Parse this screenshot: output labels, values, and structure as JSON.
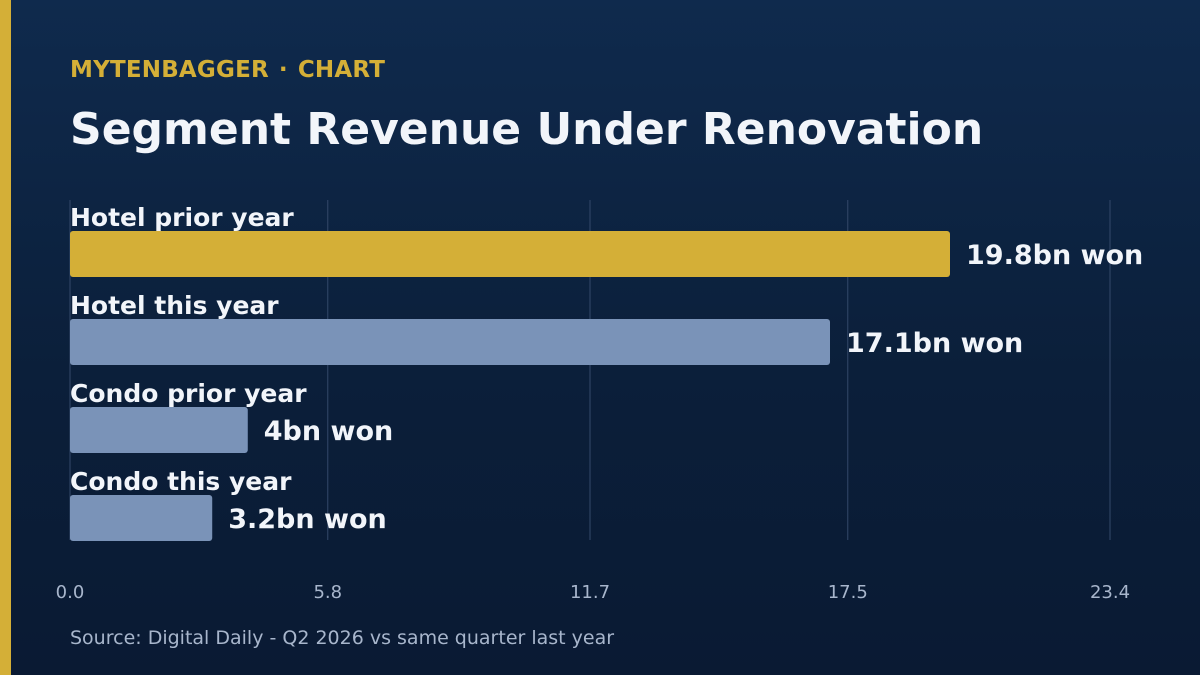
{
  "header": {
    "brand": "MYTENBAGGER",
    "separator": "·",
    "section": "CHART",
    "title": "Segment Revenue Under Renovation"
  },
  "footer": {
    "source": "Source: Digital Daily - Q2 2026 vs same quarter last year"
  },
  "colors": {
    "accent": "#d4af37",
    "bar_default": "#7a93b8",
    "grid": "#34496a",
    "text": "#f2f5fa",
    "muted": "#a8b6cc"
  },
  "chart_data": {
    "type": "bar",
    "orientation": "horizontal",
    "title": "Segment Revenue Under Renovation",
    "xlabel": "",
    "ylabel": "",
    "xlim": [
      0,
      23.4
    ],
    "ticks": [
      0.0,
      5.8,
      11.7,
      17.5,
      23.4
    ],
    "tick_labels": [
      "0.0",
      "5.8",
      "11.7",
      "17.5",
      "23.4"
    ],
    "grid": true,
    "unit": "bn won",
    "categories": [
      "Hotel prior year",
      "Hotel this year",
      "Condo prior year",
      "Condo this year"
    ],
    "values": [
      19.8,
      17.1,
      4,
      3.2
    ],
    "value_labels": [
      "19.8bn won",
      "17.1bn won",
      "4bn won",
      "3.2bn won"
    ],
    "highlight_index": 0
  }
}
